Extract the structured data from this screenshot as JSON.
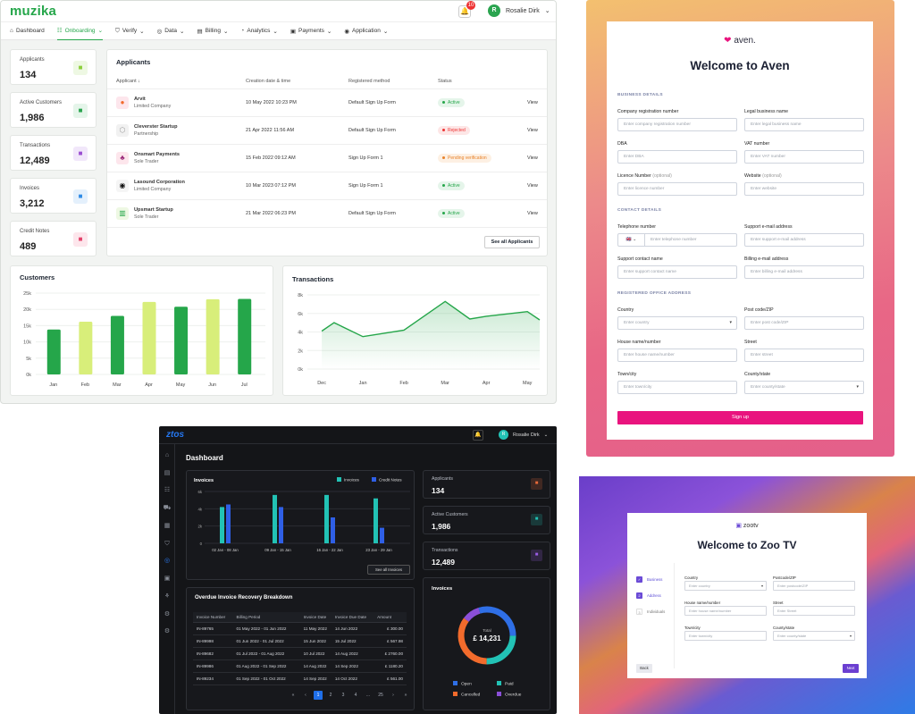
{
  "muzika": {
    "logo": "muzika",
    "notification_count": "10",
    "user_initial": "R",
    "user_name": "Rosalie Dirk",
    "nav": [
      "Dashboard",
      "Onboarding",
      "Verify",
      "Data",
      "Billing",
      "Analytics",
      "Payments",
      "Application"
    ],
    "stats": [
      {
        "label": "Applicants",
        "value": "134",
        "icon": "users-icon",
        "color": "#8ccf3c",
        "bg": "#eef8e3"
      },
      {
        "label": "Active Customers",
        "value": "1,986",
        "icon": "user-icon",
        "color": "#2aa44f",
        "bg": "#e5f5ea"
      },
      {
        "label": "Transactions",
        "value": "12,489",
        "icon": "coins-icon",
        "color": "#9b4fd1",
        "bg": "#f1e7fa"
      },
      {
        "label": "Invoices",
        "value": "3,212",
        "icon": "invoice-icon",
        "color": "#2f8be6",
        "bg": "#e4f0fc"
      },
      {
        "label": "Credit Notes",
        "value": "489",
        "icon": "credit-note-icon",
        "color": "#e3436b",
        "bg": "#fde6ec"
      }
    ],
    "applicants": {
      "title": "Applicants",
      "columns": [
        "Applicant ↓",
        "Creation date & time",
        "Registered method",
        "Status",
        ""
      ],
      "rows": [
        {
          "name": "Arvit",
          "type": "Limited Company",
          "date": "10 May 2022 10:23 PM",
          "method": "Default Sign Up Form",
          "status": "Active",
          "action": "View"
        },
        {
          "name": "Cleverster Startup",
          "type": "Partnership",
          "date": "21 Apr 2022 11:56 AM",
          "method": "Default Sign Up Form",
          "status": "Rejected",
          "action": "View"
        },
        {
          "name": "Onsmart Payments",
          "type": "Sole Trader",
          "date": "15 Feb 2022 09:12 AM",
          "method": "Sign Up Form 1",
          "status": "Pending verification",
          "action": "View"
        },
        {
          "name": "Lasound Corporation",
          "type": "Limited Company",
          "date": "10 Mar 2023 07:12 PM",
          "method": "Sign Up Form 1",
          "status": "Active",
          "action": "View"
        },
        {
          "name": "Upsmart Startup",
          "type": "Sole Trader",
          "date": "21 Mar 2022 06:23 PM",
          "method": "Default Sign Up Form",
          "status": "Active",
          "action": "View"
        }
      ],
      "see_all": "See all Applicants"
    }
  },
  "aven": {
    "logo": "aven.",
    "title": "Welcome to Aven",
    "sections": [
      "BUSINESS DETAILS",
      "CONTACT DETAILS",
      "REGISTERED OFFICE ADDRESS"
    ],
    "fields": [
      {
        "label": "Company registration number",
        "opt": "",
        "ph": "Enter company registration number"
      },
      {
        "label": "Legal business name",
        "opt": "",
        "ph": "Enter legal business name"
      },
      {
        "label": "DBA",
        "opt": "",
        "ph": "Enter DBA"
      },
      {
        "label": "VAT number",
        "opt": "",
        "ph": "Enter VAT number"
      },
      {
        "label": "Licence Number",
        "opt": "(optional)",
        "ph": "Enter licence number"
      },
      {
        "label": "Website",
        "opt": "(optional)",
        "ph": "Enter website"
      },
      {
        "label": "Telephone number",
        "opt": "",
        "ph": "Enter telephone number"
      },
      {
        "label": "Support e-mail address",
        "opt": "",
        "ph": "Enter support e-mail address"
      },
      {
        "label": "Support contact name",
        "opt": "",
        "ph": "Enter support contact name"
      },
      {
        "label": "Billing e-mail address",
        "opt": "",
        "ph": "Enter billing e-mail address"
      },
      {
        "label": "Country",
        "opt": "",
        "ph": "Enter country"
      },
      {
        "label": "Post code/ZIP",
        "opt": "",
        "ph": "Enter post code/ZIP"
      },
      {
        "label": "House name/number",
        "opt": "",
        "ph": "Enter house name/number"
      },
      {
        "label": "Street",
        "opt": "",
        "ph": "Enter street"
      },
      {
        "label": "Town/city",
        "opt": "",
        "ph": "Enter town/city"
      },
      {
        "label": "County/state",
        "opt": "",
        "ph": "Enter county/state"
      }
    ],
    "button": "Sign up"
  },
  "ztos": {
    "logo": "ztos",
    "user_initial": "R",
    "user_name": "Rosalie Dirk",
    "heading": "Dashboard",
    "invoices_title": "Invoices",
    "see_all": "See all Invoices",
    "cards": [
      {
        "label": "Applicants",
        "value": "134",
        "color": "#e86a3a"
      },
      {
        "label": "Active Customers",
        "value": "1,986",
        "color": "#22c2b5"
      },
      {
        "label": "Transactions",
        "value": "12,489",
        "color": "#9b5de5"
      }
    ],
    "overdue_title": "Overdue Invoice Recovery Breakdown",
    "overdue_columns": [
      "Invoice Number",
      "Billing Period",
      "Invoice Date",
      "Invoice Due Date",
      "Amount"
    ],
    "overdue_rows": [
      [
        "IN-89765",
        "01 May 2022 - 01 Jun 2022",
        "11 May 2022",
        "14 Jun 2022",
        "£ 300.00"
      ],
      [
        "IN-89998",
        "01 Jun 2022 - 01 Jul 2022",
        "15 Jun 2022",
        "15 Jul 2022",
        "£ 567.98"
      ],
      [
        "IN-89682",
        "01 Jul 2022 - 01 Aug 2022",
        "10 Jul 2022",
        "14 Aug 2022",
        "£ 2760.00"
      ],
      [
        "IN-89986",
        "01 Aug 2022 - 01 Sep 2022",
        "14 Aug 2022",
        "14 Sep 2022",
        "£ 1180.20"
      ],
      [
        "IN-89234",
        "01 Sep 2022 - 01 Oct 2022",
        "14 Sep 2022",
        "14 Oct 2022",
        "£ 561.00"
      ]
    ],
    "pages": [
      "«",
      "‹",
      "1",
      "2",
      "3",
      "4",
      "...",
      "25",
      "›",
      "»"
    ],
    "donut_title": "Invoices",
    "donut_total_label": "Total",
    "donut_total": "£ 14,231",
    "donut_legend": [
      {
        "name": "Open",
        "color": "#2f6fe6"
      },
      {
        "name": "Paid",
        "color": "#22c2b5"
      },
      {
        "name": "Cancelled",
        "color": "#f26b2c"
      },
      {
        "name": "Overdue",
        "color": "#8b4fd8"
      }
    ]
  },
  "zoo": {
    "logo": "zootv",
    "title": "Welcome to Zoo TV",
    "steps": [
      "Business",
      "Address",
      "Individuals"
    ],
    "fields": [
      {
        "label": "Country",
        "ph": "Enter country"
      },
      {
        "label": "Postcode/ZIP",
        "ph": "Enter postcode/ZIP"
      },
      {
        "label": "House name/number",
        "ph": "Enter house name/number"
      },
      {
        "label": "Street",
        "ph": "Enter Street"
      },
      {
        "label": "Town/city",
        "ph": "Enter town/city"
      },
      {
        "label": "County/state",
        "ph": "Enter county/state"
      }
    ],
    "back": "Back",
    "next": "Next"
  },
  "chart_data": [
    {
      "type": "bar",
      "title": "Customers",
      "categories": [
        "Jan",
        "Feb",
        "Mar",
        "Apr",
        "May",
        "Jun",
        "Jul"
      ],
      "values": [
        13800,
        16200,
        18000,
        22300,
        20800,
        23100,
        23200
      ],
      "colors": [
        "#25a64a",
        "#d8ee7a",
        "#25a64a",
        "#d8ee7a",
        "#25a64a",
        "#d8ee7a",
        "#25a64a"
      ],
      "ylim": [
        0,
        25000
      ],
      "yticks": [
        "0k",
        "5k",
        "10k",
        "15k",
        "20k",
        "25k"
      ],
      "grid": true
    },
    {
      "type": "area",
      "title": "Transactions",
      "categories": [
        "Dec",
        "Jan",
        "Feb",
        "Mar",
        "Apr",
        "May"
      ],
      "x": [
        0,
        0.3,
        1,
        2,
        3,
        3.6,
        4,
        5,
        5.3
      ],
      "values": [
        4100,
        5000,
        3500,
        4200,
        7300,
        5400,
        5700,
        6200,
        5300
      ],
      "ylim": [
        0,
        8000
      ],
      "yticks": [
        "0k",
        "2k",
        "4k",
        "6k",
        "8k"
      ],
      "grid": true
    },
    {
      "type": "bar",
      "title": "Invoices",
      "categories": [
        "02 Jan - 08 Jan",
        "09 Jan - 15 Jan",
        "16 Jan - 22 Jan",
        "23 Jan - 29 Jan"
      ],
      "yticks": [
        "0",
        "2k",
        "4k",
        "6k"
      ],
      "ylim": [
        0,
        6000
      ],
      "series": [
        {
          "name": "Invoices",
          "color": "#22c2b5",
          "values": [
            4200,
            5600,
            5600,
            5200
          ]
        },
        {
          "name": "Credit Notes",
          "color": "#2f5fe6",
          "values": [
            4500,
            4200,
            3000,
            1800
          ]
        }
      ],
      "legend": "top-right"
    },
    {
      "type": "pie",
      "title": "Invoices",
      "categories": [
        "Open",
        "Paid",
        "Cancelled",
        "Overdue"
      ],
      "values": [
        30,
        25,
        35,
        10
      ]
    }
  ]
}
